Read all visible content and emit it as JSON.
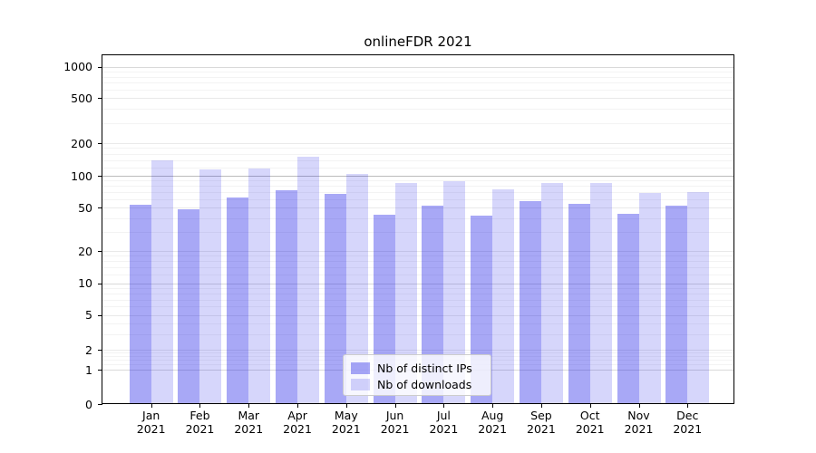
{
  "chart_data": {
    "type": "bar",
    "title": "onlineFDR 2021",
    "categories": [
      "Jan 2021",
      "Feb 2021",
      "Mar 2021",
      "Apr 2021",
      "May 2021",
      "Jun 2021",
      "Jul 2021",
      "Aug 2021",
      "Sep 2021",
      "Oct 2021",
      "Nov 2021",
      "Dec 2021"
    ],
    "series": [
      {
        "name": "Nb of distinct IPs",
        "color": "rgba(0,0,230,0.34)",
        "values": [
          53,
          48,
          62,
          73,
          67,
          43,
          52,
          42,
          58,
          54,
          44,
          52
        ]
      },
      {
        "name": "Nb of downloads",
        "color": "rgba(0,0,230,0.16)",
        "values": [
          138,
          115,
          117,
          151,
          103,
          86,
          88,
          75,
          86,
          85,
          68,
          70
        ]
      }
    ],
    "xlabel": "",
    "ylabel": "",
    "y_axis": {
      "scale": "symlog",
      "tick_values": [
        0,
        1,
        2,
        5,
        10,
        20,
        50,
        100,
        200,
        500,
        1000
      ],
      "range": [
        0,
        1300
      ]
    },
    "grid": true,
    "legend": {
      "position": "lower-center"
    }
  },
  "colors": {
    "major_grid": "#bcbcbc",
    "mid_grid": "#d9d9d9",
    "labeled_minor_grid": "#e9e9e9",
    "minor_grid": "#f3f3f3",
    "spine": "#000000",
    "background": "#ffffff"
  }
}
